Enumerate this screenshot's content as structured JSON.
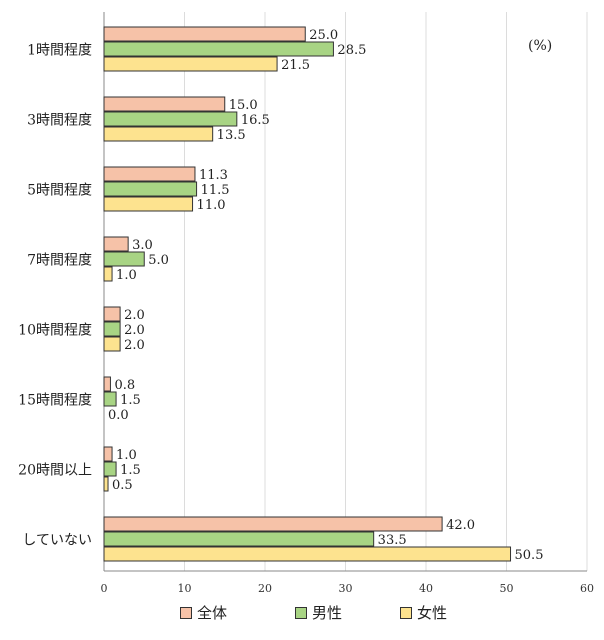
{
  "chart_data": {
    "type": "bar",
    "orientation": "horizontal",
    "unit_label": "(%)",
    "categories": [
      "1時間程度",
      "3時間程度",
      "5時間程度",
      "7時間程度",
      "10時間程度",
      "15時間程度",
      "20時間以上",
      "していない"
    ],
    "series": [
      {
        "name": "全体",
        "color": "#f6c2a8",
        "values": [
          25.0,
          15.0,
          11.3,
          3.0,
          2.0,
          0.8,
          1.0,
          42.0
        ]
      },
      {
        "name": "男性",
        "color": "#a8d484",
        "values": [
          28.5,
          16.5,
          11.5,
          5.0,
          2.0,
          1.5,
          1.5,
          33.5
        ]
      },
      {
        "name": "女性",
        "color": "#fde38f",
        "values": [
          21.5,
          13.5,
          11.0,
          1.0,
          2.0,
          0.0,
          0.5,
          50.5
        ]
      }
    ],
    "value_labels": [
      [
        "25.0",
        "15.0",
        "11.3",
        "3.0",
        "2.0",
        "0.8",
        "1.0",
        "42.0"
      ],
      [
        "28.5",
        "16.5",
        "11.5",
        "5.0",
        "2.0",
        "1.5",
        "1.5",
        "33.5"
      ],
      [
        "21.5",
        "13.5",
        "11.0",
        "1.0",
        "2.0",
        "0.0",
        "0.5",
        "50.5"
      ]
    ],
    "xlim": [
      0,
      60
    ],
    "xticks": [
      "0",
      "10",
      "20",
      "30",
      "40",
      "50",
      "60"
    ],
    "grid": true,
    "legend_position": "bottom"
  }
}
